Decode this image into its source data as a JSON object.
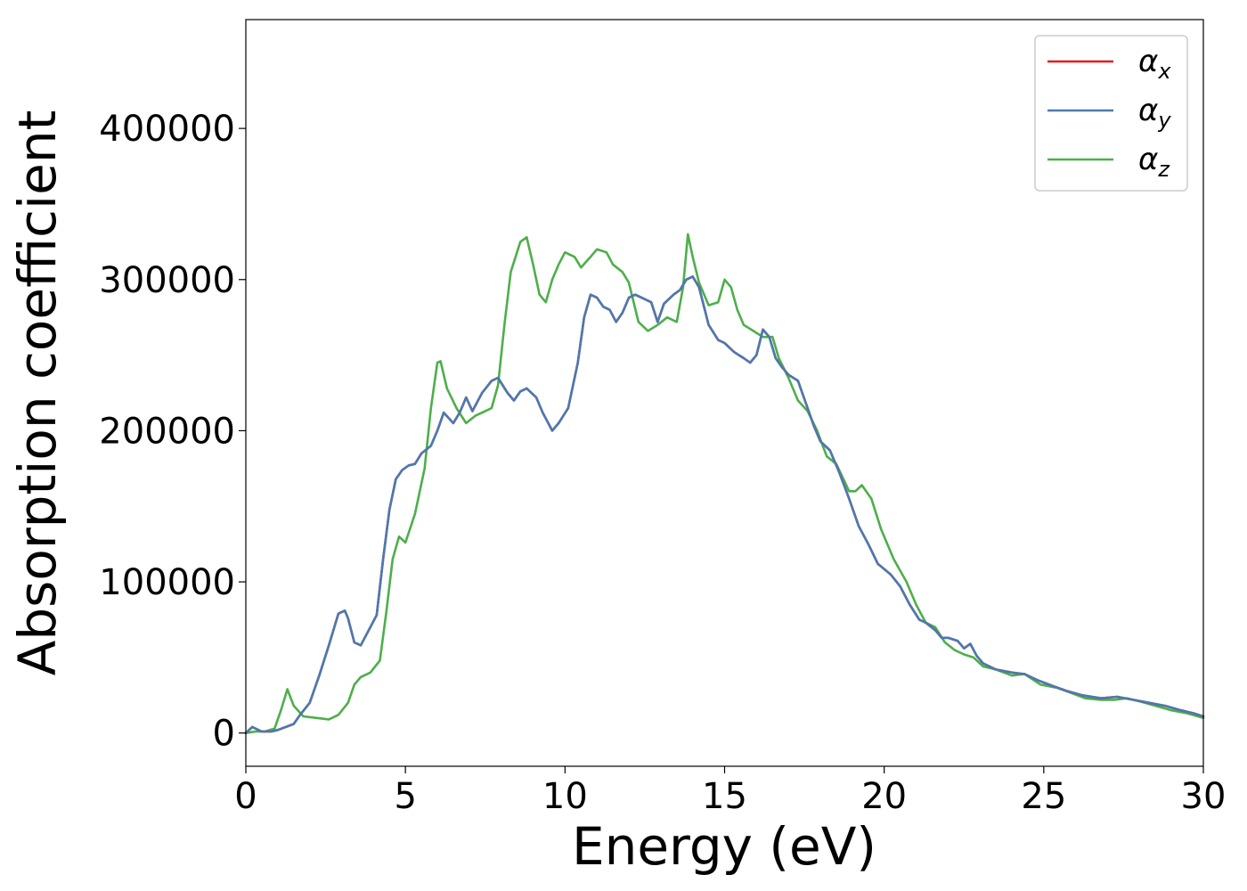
{
  "chart_data": {
    "type": "line",
    "title": "",
    "xlabel": "Energy (eV)",
    "ylabel": "Absorption coefficient",
    "xlim": [
      0,
      30
    ],
    "ylim": [
      -22000,
      472000
    ],
    "x_ticks": [
      0,
      5,
      10,
      15,
      20,
      25,
      30
    ],
    "x_tick_labels": [
      "0",
      "5",
      "10",
      "15",
      "20",
      "25",
      "30"
    ],
    "y_ticks": [
      0,
      100000,
      200000,
      300000,
      400000
    ],
    "y_tick_labels": [
      "0",
      "100000",
      "200000",
      "300000",
      "400000"
    ],
    "grid": false,
    "legend_position": "top-right",
    "series": [
      {
        "name": "α_x",
        "legend_symbol": "α",
        "legend_subscript": "x",
        "color": "#e41a1c",
        "x": [
          0,
          0.2,
          0.5,
          0.8,
          1.0,
          1.5,
          1.7,
          2.0,
          2.3,
          2.6,
          2.9,
          3.1,
          3.2,
          3.4,
          3.6,
          3.8,
          4.1,
          4.3,
          4.5,
          4.7,
          4.9,
          5.1,
          5.3,
          5.5,
          5.8,
          6.0,
          6.2,
          6.5,
          6.7,
          6.9,
          7.1,
          7.4,
          7.7,
          7.9,
          8.2,
          8.4,
          8.6,
          8.8,
          9.1,
          9.3,
          9.6,
          9.8,
          10.1,
          10.4,
          10.6,
          10.8,
          11.0,
          11.2,
          11.4,
          11.6,
          11.8,
          12.0,
          12.2,
          12.4,
          12.7,
          12.9,
          13.1,
          13.4,
          13.6,
          13.8,
          14.0,
          14.2,
          14.5,
          14.8,
          15.0,
          15.3,
          15.6,
          15.8,
          16.0,
          16.2,
          16.4,
          16.6,
          16.8,
          17.0,
          17.3,
          17.6,
          17.8,
          18.0,
          18.3,
          18.6,
          18.9,
          19.2,
          19.5,
          19.8,
          20.2,
          20.5,
          20.8,
          21.1,
          21.3,
          21.6,
          21.8,
          22.0,
          22.3,
          22.5,
          22.7,
          22.9,
          23.1,
          23.5,
          24.0,
          24.4,
          24.8,
          25.3,
          25.7,
          26.2,
          26.8,
          27.3,
          27.8,
          28.3,
          28.8,
          29.3,
          29.7,
          30.0
        ],
        "y": [
          0,
          4000,
          1000,
          1000,
          2000,
          6000,
          12000,
          20000,
          38000,
          58000,
          79000,
          81000,
          76000,
          60000,
          58000,
          66000,
          78000,
          115000,
          148000,
          168000,
          174000,
          177000,
          178000,
          185000,
          190000,
          200000,
          212000,
          205000,
          212000,
          222000,
          213000,
          225000,
          233000,
          235000,
          225000,
          220000,
          226000,
          228000,
          222000,
          212000,
          200000,
          205000,
          215000,
          245000,
          275000,
          290000,
          288000,
          282000,
          280000,
          272000,
          278000,
          288000,
          290000,
          288000,
          285000,
          272000,
          284000,
          290000,
          293000,
          300000,
          302000,
          295000,
          270000,
          260000,
          258000,
          252000,
          248000,
          245000,
          250000,
          267000,
          262000,
          248000,
          242000,
          237000,
          233000,
          215000,
          203000,
          193000,
          187000,
          172000,
          155000,
          137000,
          125000,
          112000,
          105000,
          97000,
          85000,
          75000,
          73000,
          68000,
          63000,
          63000,
          61000,
          56000,
          59000,
          51000,
          46000,
          42000,
          40000,
          39000,
          35000,
          31000,
          28000,
          25000,
          23000,
          24000,
          22000,
          20000,
          18000,
          15000,
          13000,
          11000
        ]
      },
      {
        "name": "α_y",
        "legend_symbol": "α",
        "legend_subscript": "y",
        "color": "#4a7ab0",
        "x": [
          0,
          0.2,
          0.5,
          0.8,
          1.0,
          1.5,
          1.7,
          2.0,
          2.3,
          2.6,
          2.9,
          3.1,
          3.2,
          3.4,
          3.6,
          3.8,
          4.1,
          4.3,
          4.5,
          4.7,
          4.9,
          5.1,
          5.3,
          5.5,
          5.8,
          6.0,
          6.2,
          6.5,
          6.7,
          6.9,
          7.1,
          7.4,
          7.7,
          7.9,
          8.2,
          8.4,
          8.6,
          8.8,
          9.1,
          9.3,
          9.6,
          9.8,
          10.1,
          10.4,
          10.6,
          10.8,
          11.0,
          11.2,
          11.4,
          11.6,
          11.8,
          12.0,
          12.2,
          12.4,
          12.7,
          12.9,
          13.1,
          13.4,
          13.6,
          13.8,
          14.0,
          14.2,
          14.5,
          14.8,
          15.0,
          15.3,
          15.6,
          15.8,
          16.0,
          16.2,
          16.4,
          16.6,
          16.8,
          17.0,
          17.3,
          17.6,
          17.8,
          18.0,
          18.3,
          18.6,
          18.9,
          19.2,
          19.5,
          19.8,
          20.2,
          20.5,
          20.8,
          21.1,
          21.3,
          21.6,
          21.8,
          22.0,
          22.3,
          22.5,
          22.7,
          22.9,
          23.1,
          23.5,
          24.0,
          24.4,
          24.8,
          25.3,
          25.7,
          26.2,
          26.8,
          27.3,
          27.8,
          28.3,
          28.8,
          29.3,
          29.7,
          30.0
        ],
        "y": [
          0,
          4000,
          1000,
          1000,
          2000,
          6000,
          12000,
          20000,
          38000,
          58000,
          79000,
          81000,
          76000,
          60000,
          58000,
          66000,
          78000,
          115000,
          148000,
          168000,
          174000,
          177000,
          178000,
          185000,
          190000,
          200000,
          212000,
          205000,
          212000,
          222000,
          213000,
          225000,
          233000,
          235000,
          225000,
          220000,
          226000,
          228000,
          222000,
          212000,
          200000,
          205000,
          215000,
          245000,
          275000,
          290000,
          288000,
          282000,
          280000,
          272000,
          278000,
          288000,
          290000,
          288000,
          285000,
          272000,
          284000,
          290000,
          293000,
          300000,
          302000,
          295000,
          270000,
          260000,
          258000,
          252000,
          248000,
          245000,
          250000,
          267000,
          262000,
          248000,
          242000,
          237000,
          233000,
          215000,
          203000,
          193000,
          187000,
          172000,
          155000,
          137000,
          125000,
          112000,
          105000,
          97000,
          85000,
          75000,
          73000,
          68000,
          63000,
          63000,
          61000,
          56000,
          59000,
          51000,
          46000,
          42000,
          40000,
          39000,
          35000,
          31000,
          28000,
          25000,
          23000,
          24000,
          22000,
          20000,
          18000,
          15000,
          13000,
          11000
        ]
      },
      {
        "name": "α_z",
        "legend_symbol": "α",
        "legend_subscript": "z",
        "color": "#4daf4a",
        "x": [
          0,
          0.3,
          0.6,
          0.9,
          1.1,
          1.3,
          1.5,
          1.8,
          2.2,
          2.6,
          2.9,
          3.2,
          3.4,
          3.6,
          3.9,
          4.2,
          4.4,
          4.6,
          4.8,
          5.0,
          5.3,
          5.6,
          5.8,
          6.0,
          6.1,
          6.3,
          6.6,
          6.9,
          7.2,
          7.5,
          7.7,
          7.9,
          8.1,
          8.3,
          8.6,
          8.8,
          9.0,
          9.2,
          9.4,
          9.6,
          9.8,
          10.0,
          10.3,
          10.5,
          10.8,
          11.0,
          11.3,
          11.5,
          11.8,
          12.0,
          12.3,
          12.6,
          12.9,
          13.2,
          13.5,
          13.7,
          13.85,
          14.0,
          14.2,
          14.5,
          14.8,
          15.0,
          15.2,
          15.4,
          15.6,
          15.9,
          16.2,
          16.5,
          16.7,
          17.0,
          17.3,
          17.6,
          17.9,
          18.2,
          18.5,
          18.9,
          19.1,
          19.3,
          19.6,
          19.9,
          20.3,
          20.7,
          21.0,
          21.3,
          21.6,
          21.9,
          22.2,
          22.5,
          22.8,
          23.1,
          23.5,
          24.0,
          24.4,
          24.9,
          25.4,
          25.8,
          26.3,
          26.8,
          27.2,
          27.6,
          28.0,
          28.5,
          29.0,
          29.5,
          30.0
        ],
        "y": [
          0,
          1000,
          1000,
          3000,
          15000,
          29000,
          18000,
          11000,
          10000,
          9000,
          12000,
          20000,
          32000,
          37000,
          40000,
          48000,
          80000,
          115000,
          130000,
          126000,
          145000,
          175000,
          215000,
          245000,
          246000,
          228000,
          215000,
          205000,
          210000,
          213000,
          215000,
          230000,
          270000,
          305000,
          325000,
          328000,
          310000,
          290000,
          285000,
          300000,
          310000,
          318000,
          315000,
          308000,
          315000,
          320000,
          318000,
          310000,
          305000,
          298000,
          272000,
          266000,
          270000,
          275000,
          272000,
          295000,
          330000,
          315000,
          298000,
          283000,
          285000,
          300000,
          295000,
          280000,
          270000,
          266000,
          262000,
          262000,
          248000,
          235000,
          220000,
          213000,
          200000,
          183000,
          178000,
          160000,
          160000,
          164000,
          155000,
          135000,
          115000,
          100000,
          85000,
          73000,
          70000,
          60000,
          55000,
          52000,
          50000,
          44000,
          42000,
          38000,
          39000,
          32000,
          30000,
          27000,
          23000,
          22000,
          22000,
          23000,
          21000,
          18000,
          15000,
          13000,
          10000
        ]
      }
    ]
  }
}
